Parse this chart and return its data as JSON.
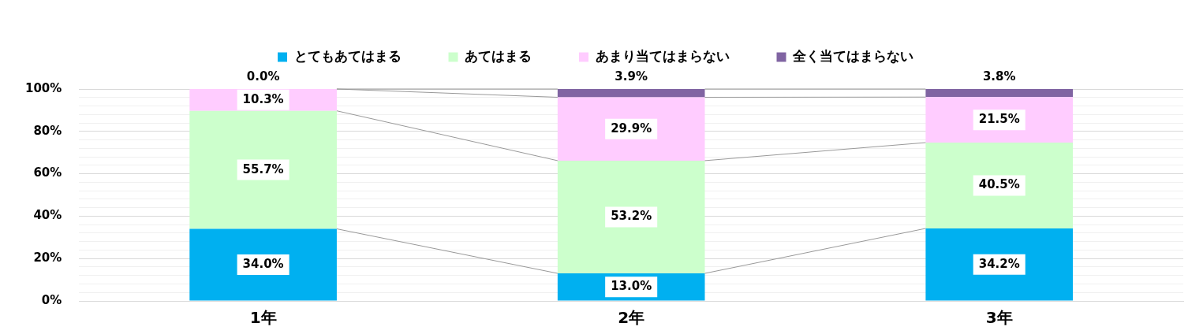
{
  "chart_data": {
    "type": "bar",
    "stacked": true,
    "categories": [
      "1年",
      "2年",
      "3年"
    ],
    "series": [
      {
        "name": "とてもあてはまる",
        "color": "#00b0f0",
        "values": [
          34.0,
          13.0,
          34.2
        ],
        "value_labels": [
          "34.0%",
          "13.0%",
          "34.2%"
        ]
      },
      {
        "name": "あてはまる",
        "color": "#ccffcc",
        "values": [
          55.7,
          53.2,
          40.5
        ],
        "value_labels": [
          "55.7%",
          "53.2%",
          "40.5%"
        ]
      },
      {
        "name": "あまり当てはまらない",
        "color": "#ffccff",
        "values": [
          10.3,
          29.9,
          21.5
        ],
        "value_labels": [
          "10.3%",
          "29.9%",
          "21.5%"
        ]
      },
      {
        "name": "全く当てはまらない",
        "color": "#8064a2",
        "values": [
          0.0,
          3.9,
          3.8
        ],
        "value_labels": [
          "0.0%",
          "3.9%",
          "3.8%"
        ]
      }
    ],
    "ylim": [
      0,
      100
    ],
    "yticks": [
      {
        "value": 0,
        "label": "0%"
      },
      {
        "value": 4,
        "label": null
      },
      {
        "value": 8,
        "label": null
      },
      {
        "value": 12,
        "label": null
      },
      {
        "value": 16,
        "label": null
      },
      {
        "value": 20,
        "label": "20%"
      },
      {
        "value": 24,
        "label": null
      },
      {
        "value": 28,
        "label": null
      },
      {
        "value": 32,
        "label": null
      },
      {
        "value": 36,
        "label": null
      },
      {
        "value": 40,
        "label": "40%"
      },
      {
        "value": 44,
        "label": null
      },
      {
        "value": 48,
        "label": null
      },
      {
        "value": 52,
        "label": null
      },
      {
        "value": 56,
        "label": null
      },
      {
        "value": 60,
        "label": "60%"
      },
      {
        "value": 64,
        "label": null
      },
      {
        "value": 68,
        "label": null
      },
      {
        "value": 72,
        "label": null
      },
      {
        "value": 76,
        "label": null
      },
      {
        "value": 80,
        "label": "80%"
      },
      {
        "value": 84,
        "label": null
      },
      {
        "value": 88,
        "label": null
      },
      {
        "value": 92,
        "label": null
      },
      {
        "value": 96,
        "label": null
      },
      {
        "value": 100,
        "label": "100%"
      }
    ],
    "grid": "y",
    "legend": "top"
  }
}
